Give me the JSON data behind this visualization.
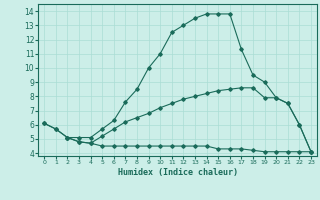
{
  "xlabel": "Humidex (Indice chaleur)",
  "bg_color": "#cceee8",
  "grid_color": "#aaddd5",
  "line_color": "#1a6b5a",
  "xlim": [
    -0.5,
    23.5
  ],
  "ylim": [
    3.8,
    14.5
  ],
  "xticks": [
    0,
    1,
    2,
    3,
    4,
    5,
    6,
    7,
    8,
    9,
    10,
    11,
    12,
    13,
    14,
    15,
    16,
    17,
    18,
    19,
    20,
    21,
    22,
    23
  ],
  "yticks": [
    4,
    5,
    6,
    7,
    8,
    9,
    10,
    11,
    12,
    13,
    14
  ],
  "line1_x": [
    0,
    1,
    2,
    3,
    4,
    5,
    6,
    7,
    8,
    9,
    10,
    11,
    12,
    13,
    14,
    15,
    16,
    17,
    18,
    19,
    20,
    21,
    22,
    23
  ],
  "line1_y": [
    6.1,
    5.7,
    5.1,
    5.1,
    5.1,
    5.7,
    6.3,
    7.6,
    8.5,
    10.0,
    11.0,
    12.5,
    13.0,
    13.5,
    13.8,
    13.8,
    13.8,
    11.3,
    9.5,
    9.0,
    7.9,
    7.5,
    6.0,
    4.1
  ],
  "line2_x": [
    0,
    1,
    2,
    3,
    4,
    5,
    6,
    7,
    8,
    9,
    10,
    11,
    12,
    13,
    14,
    15,
    16,
    17,
    18,
    19,
    20,
    21,
    22,
    23
  ],
  "line2_y": [
    6.1,
    5.7,
    5.1,
    4.8,
    4.7,
    5.2,
    5.7,
    6.2,
    6.5,
    6.8,
    7.2,
    7.5,
    7.8,
    8.0,
    8.2,
    8.4,
    8.5,
    8.6,
    8.6,
    7.9,
    7.9,
    7.5,
    6.0,
    4.1
  ],
  "line3_x": [
    2,
    3,
    4,
    5,
    6,
    7,
    8,
    9,
    10,
    11,
    12,
    13,
    14,
    15,
    16,
    17,
    18,
    19,
    20,
    21,
    22,
    23
  ],
  "line3_y": [
    5.1,
    4.8,
    4.7,
    4.5,
    4.5,
    4.5,
    4.5,
    4.5,
    4.5,
    4.5,
    4.5,
    4.5,
    4.5,
    4.3,
    4.3,
    4.3,
    4.2,
    4.1,
    4.1,
    4.1,
    4.1,
    4.1
  ]
}
